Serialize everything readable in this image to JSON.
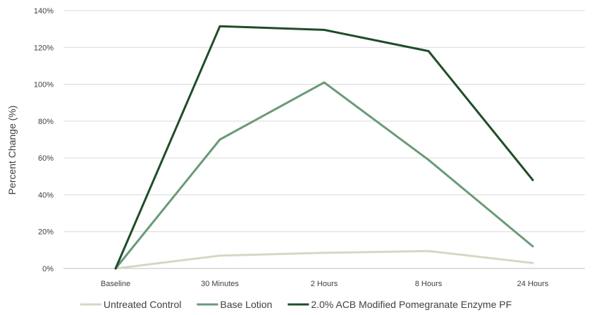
{
  "chart_data": {
    "type": "line",
    "title": "",
    "xlabel": "",
    "ylabel": "Percent Change (%)",
    "categories": [
      "Baseline",
      "30 Minutes",
      "2 Hours",
      "8 Hours",
      "24 Hours"
    ],
    "ylim": [
      0,
      140
    ],
    "yticks": [
      0,
      20,
      40,
      60,
      80,
      100,
      120,
      140
    ],
    "ytick_labels": [
      "0%",
      "20%",
      "40%",
      "60%",
      "80%",
      "100%",
      "120%",
      "140%"
    ],
    "grid": true,
    "legend_position": "bottom",
    "series": [
      {
        "name": "Untreated Control",
        "color": "#d4d8c4",
        "values": [
          0,
          7,
          8.5,
          9.5,
          3
        ]
      },
      {
        "name": "Base Lotion",
        "color": "#6a9a78",
        "values": [
          0,
          70,
          101,
          59,
          12
        ]
      },
      {
        "name": "2.0% ACB Modified Pomegranate Enzyme PF",
        "color": "#1f4d29",
        "values": [
          0,
          131.5,
          129.5,
          118,
          48
        ]
      }
    ]
  }
}
